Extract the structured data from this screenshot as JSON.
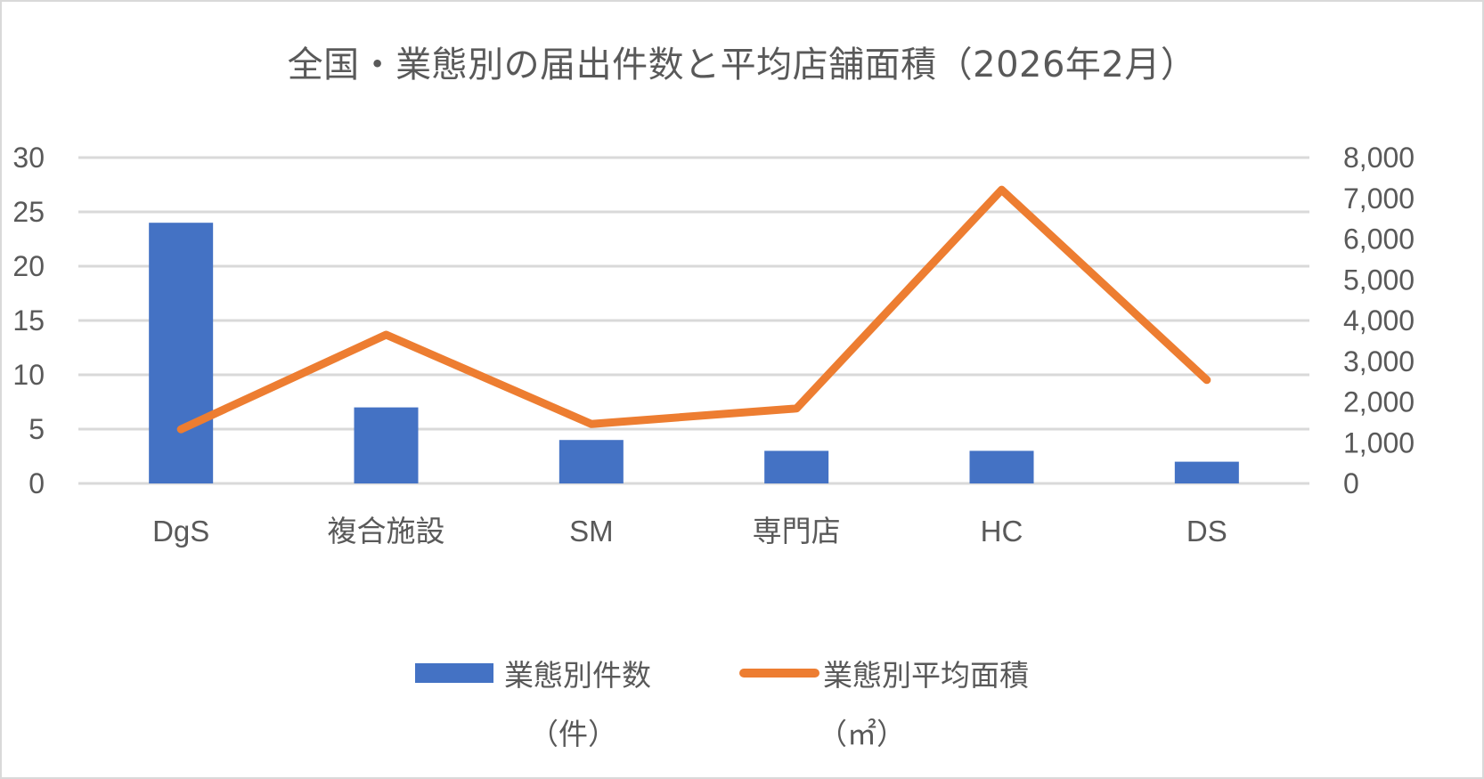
{
  "title": "全国・業態別の届出件数と平均店舗面積（2026年2月）",
  "colors": {
    "bar": "#4472c4",
    "line": "#ed7d31",
    "grid": "#d9d9d9",
    "text": "#595959"
  },
  "legend": {
    "bar_label": "業態別件数",
    "bar_unit": "（件）",
    "line_label": "業態別平均面積",
    "line_unit": "（㎡）"
  },
  "chart_data": {
    "type": "bar+line",
    "title": "全国・業態別の届出件数と平均店舗面積（2026年2月）",
    "categories": [
      "DgS",
      "複合施設",
      "SM",
      "専門店",
      "HC",
      "DS"
    ],
    "series": [
      {
        "name": "業態別件数（件）",
        "type": "bar",
        "axis": "left",
        "values": [
          24,
          7,
          4,
          3,
          3,
          2
        ]
      },
      {
        "name": "業態別平均面積（㎡）",
        "type": "line",
        "axis": "right",
        "values": [
          1330,
          3650,
          1460,
          1840,
          7210,
          2540
        ]
      }
    ],
    "left_axis": {
      "ylim": [
        0,
        30
      ],
      "ticks": [
        "0",
        "5",
        "10",
        "15",
        "20",
        "25",
        "30"
      ]
    },
    "right_axis": {
      "ylim": [
        0,
        8000
      ],
      "ticks": [
        "0",
        "1,000",
        "2,000",
        "3,000",
        "4,000",
        "5,000",
        "6,000",
        "7,000",
        "8,000"
      ]
    },
    "xlabel": "",
    "ylabel": "",
    "grid": true,
    "legend_position": "bottom"
  }
}
